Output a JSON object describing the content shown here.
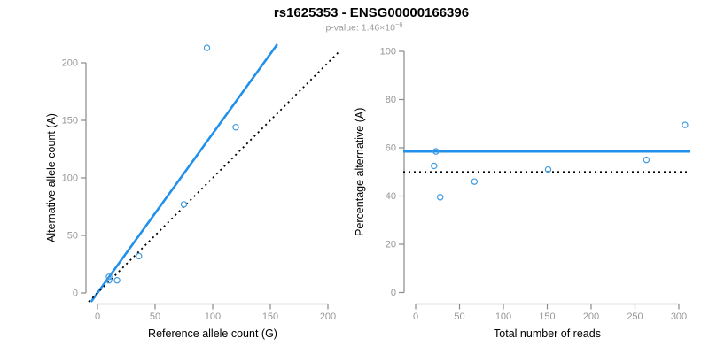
{
  "header": {
    "title": "rs1625353 - ENSG00000166396",
    "subtitle_prefix": "p-value: 1.46×10",
    "subtitle_exponent": "−6"
  },
  "colors": {
    "blue_line": "#2190EA",
    "point_stroke": "#3F9BE0",
    "dotted_line": "#000000",
    "axis": "#8A8A8A",
    "tick_label": "#969696",
    "axis_title": "#000000",
    "title": "#000000",
    "subtitle": "#9c9c9c",
    "background": "#ffffff"
  },
  "chart_data": [
    {
      "id": "allele-counts",
      "type": "scatter",
      "xlabel": "Reference allele count (G)",
      "ylabel": "Alternative allele count (A)",
      "xticks": [
        0,
        50,
        100,
        150,
        200
      ],
      "yticks": [
        0,
        50,
        100,
        150,
        200
      ],
      "xlim": [
        0,
        210
      ],
      "ylim": [
        0,
        216
      ],
      "grid": false,
      "marker": "open-circle",
      "points": [
        [
          10,
          11
        ],
        [
          10,
          14
        ],
        [
          17,
          11
        ],
        [
          36,
          32
        ],
        [
          75,
          77
        ],
        [
          95,
          213
        ],
        [
          120,
          144
        ]
      ],
      "ablines": [
        {
          "name": "regression-fit",
          "slope": 1.385,
          "intercept": 0,
          "style": "solid",
          "color_key": "blue_line"
        },
        {
          "name": "identity-line",
          "slope": 1,
          "intercept": 0,
          "style": "dotted",
          "color_key": "dotted_line"
        }
      ]
    },
    {
      "id": "percentage-vs-reads",
      "type": "scatter",
      "xlabel": "Total number of reads",
      "ylabel": "Percentage alternative (A)",
      "xticks": [
        0,
        50,
        100,
        150,
        200,
        250,
        300
      ],
      "yticks": [
        0,
        20,
        40,
        60,
        80,
        100
      ],
      "xlim": [
        0,
        310
      ],
      "ylim": [
        0,
        104
      ],
      "grid": false,
      "marker": "open-circle",
      "points": [
        [
          21,
          52.5
        ],
        [
          23,
          58.5
        ],
        [
          28,
          39.5
        ],
        [
          67,
          46
        ],
        [
          151,
          51
        ],
        [
          263,
          55
        ],
        [
          307,
          69.5
        ]
      ],
      "hlines": [
        {
          "name": "mean-percentage-line",
          "y": 58.5,
          "style": "solid",
          "color_key": "blue_line"
        },
        {
          "name": "expected-50-line",
          "y": 50,
          "style": "dotted",
          "color_key": "dotted_line"
        }
      ]
    }
  ]
}
